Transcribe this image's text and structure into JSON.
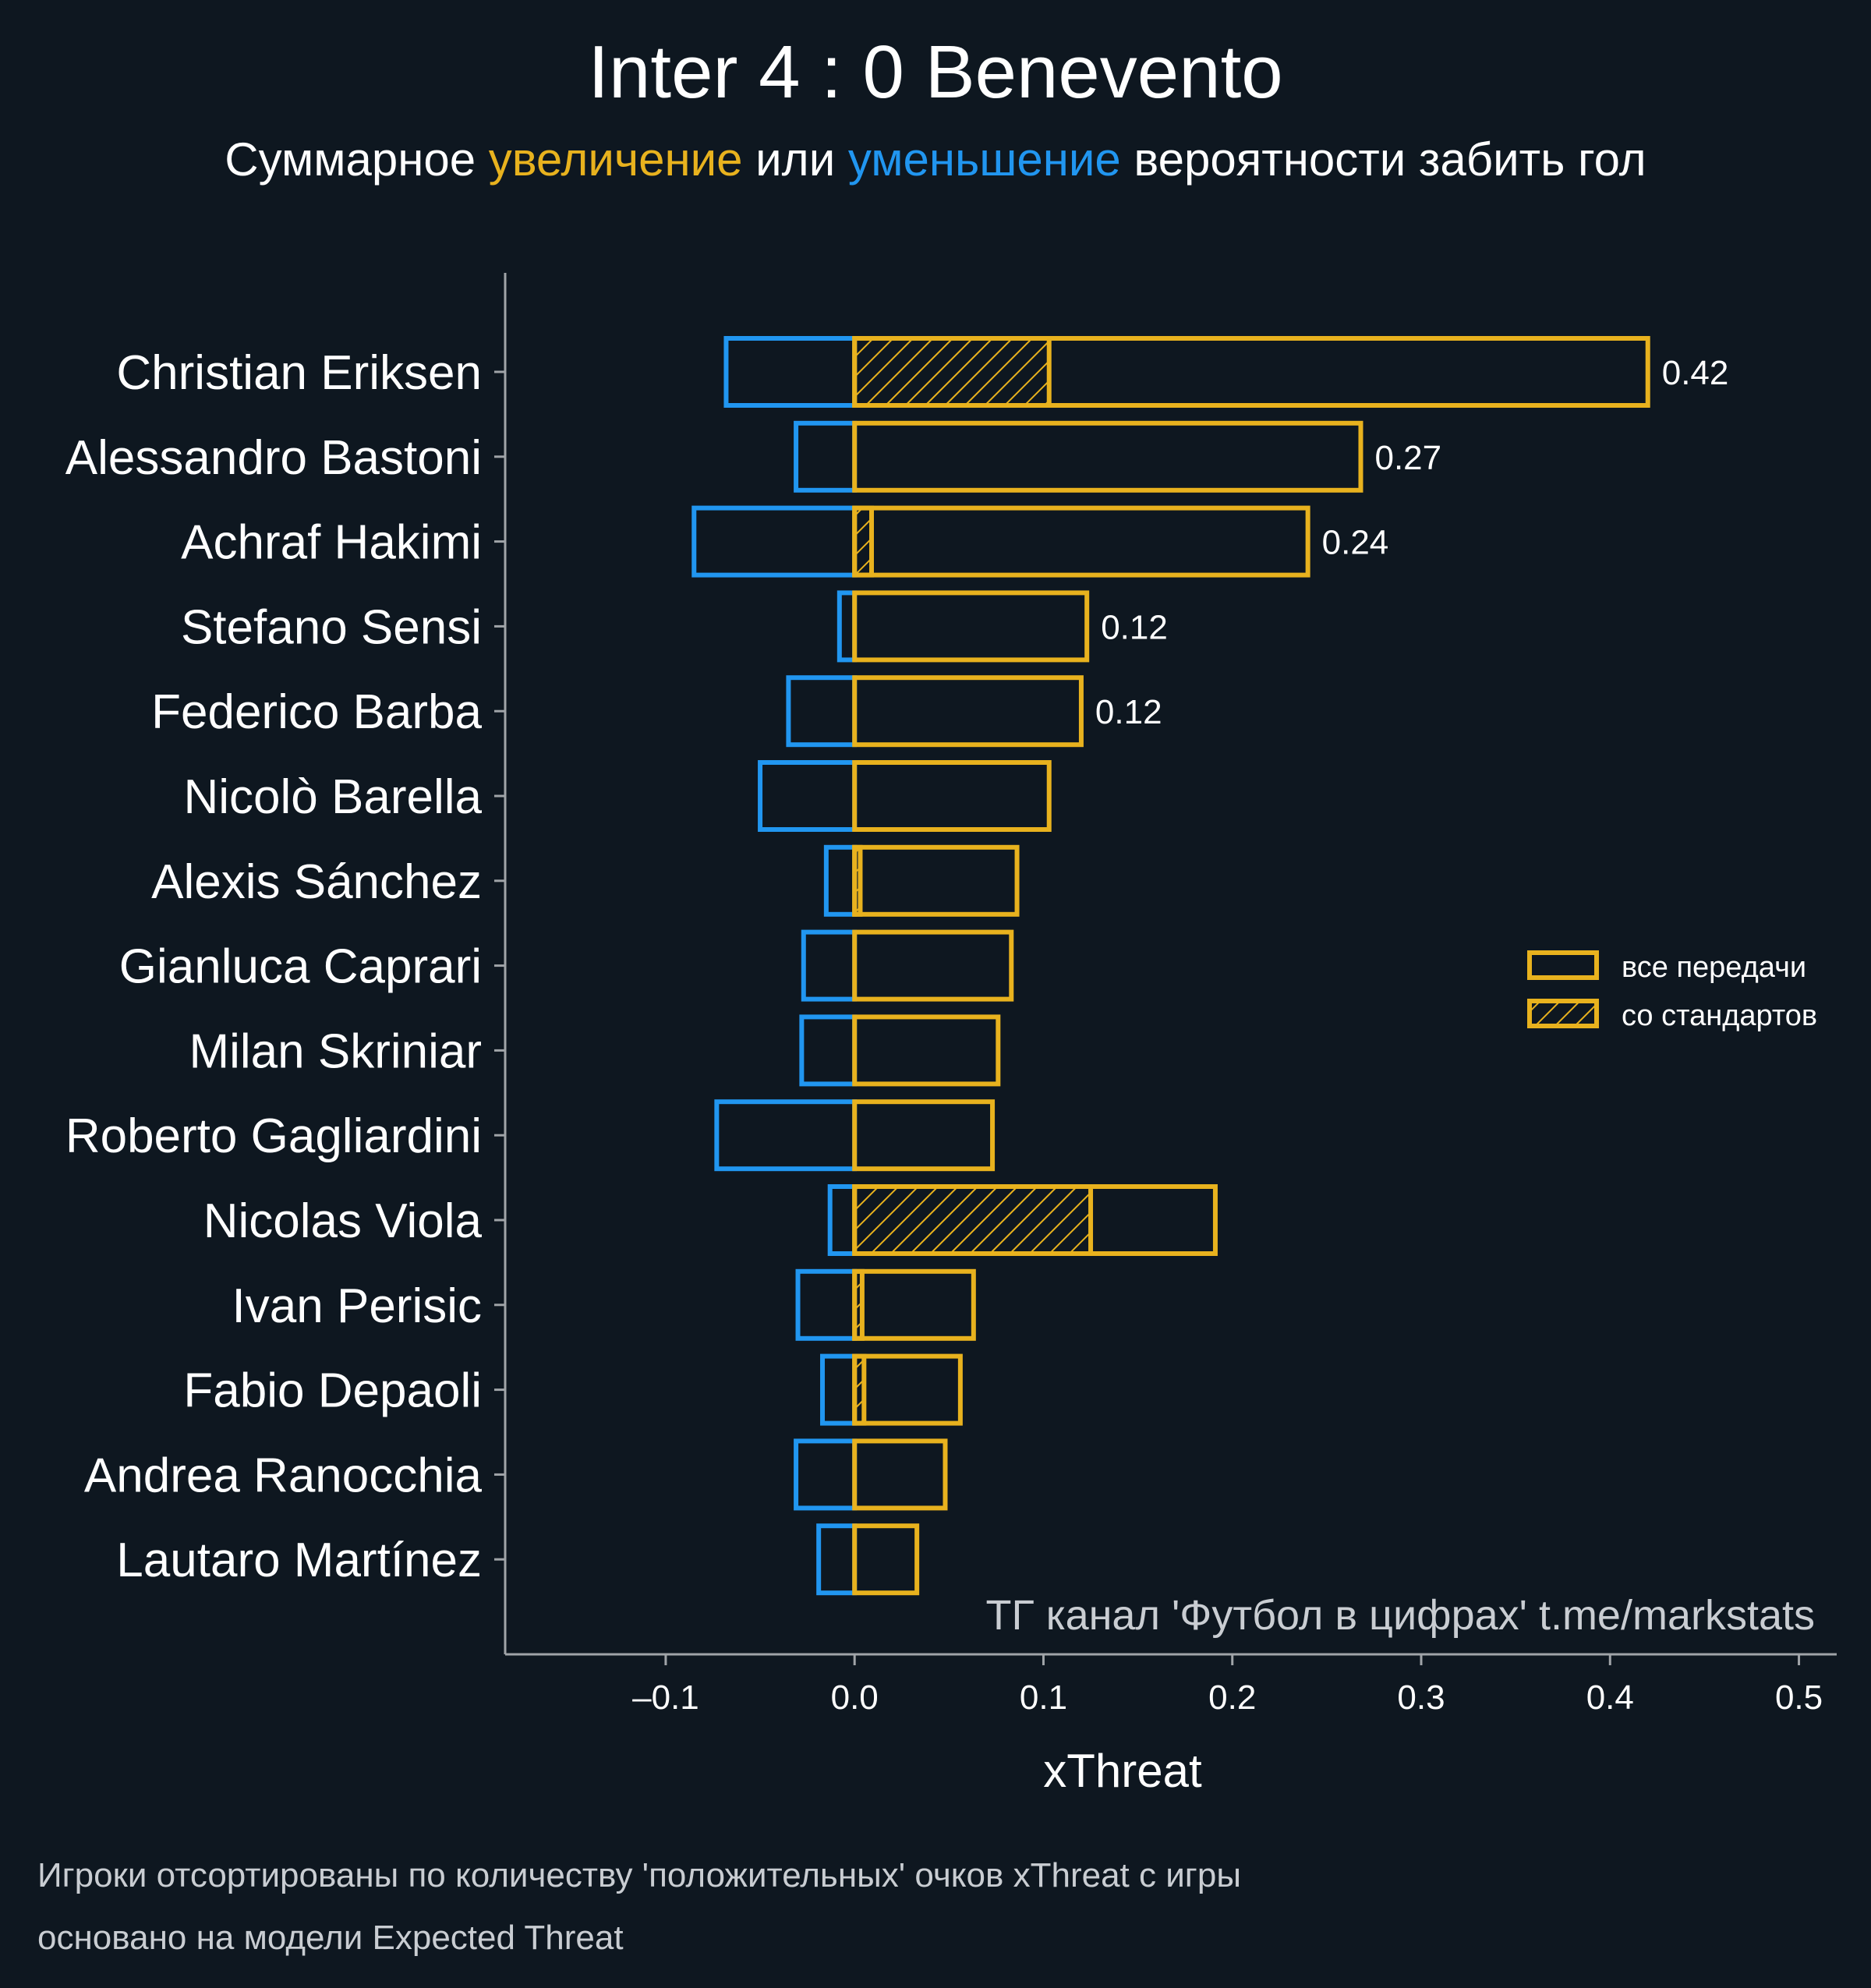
{
  "colors": {
    "background": "#0e1720",
    "positive": "#e8b21e",
    "negative": "#2196f0",
    "axis": "#a0a4a8",
    "text": "#ffffff",
    "muted": "#c9cdd2"
  },
  "title": "Inter 4 : 0 Benevento",
  "subtitle": {
    "part1": "Суммарное ",
    "highlight1": "увеличение",
    "part2": " или ",
    "highlight2": "уменьшение",
    "part3": " вероятности забить гол"
  },
  "watermark": "ТГ канал 'Футбол в цифрах'  t.me/markstats",
  "footnote": {
    "line1": "Игроки отсортированы по количеству 'положительных' очков xThreat с игры",
    "line2": "основано на модели Expected Threat"
  },
  "chart_data": {
    "type": "bar",
    "orientation": "horizontal",
    "xlabel": "xThreat",
    "xlim": [
      -0.185,
      0.52
    ],
    "xticks": [
      -0.1,
      0.0,
      0.1,
      0.2,
      0.3,
      0.4,
      0.5
    ],
    "xtick_labels": [
      "–0.1",
      "0.0",
      "0.1",
      "0.2",
      "0.3",
      "0.4",
      "0.5"
    ],
    "legend": {
      "placement": "right",
      "entries": [
        "все передачи",
        "со стандартов"
      ]
    },
    "categories": [
      "Christian Eriksen",
      "Alessandro Bastoni",
      "Achraf Hakimi",
      "Stefano Sensi",
      "Federico Barba",
      "Nicolò Barella",
      "Alexis Sánchez",
      "Gianluca Caprari",
      "Milan Skriniar",
      "Roberto Gagliardini",
      "Nicolas Viola",
      "Ivan Perisic",
      "Fabio Depaoli",
      "Andrea Ranocchia",
      "Lautaro Martínez"
    ],
    "series": [
      {
        "name": "positive (все передачи)",
        "values": [
          0.42,
          0.268,
          0.24,
          0.123,
          0.12,
          0.103,
          0.086,
          0.083,
          0.076,
          0.073,
          0.191,
          0.063,
          0.056,
          0.048,
          0.033
        ]
      },
      {
        "name": "negative",
        "values": [
          -0.068,
          -0.031,
          -0.085,
          -0.008,
          -0.035,
          -0.05,
          -0.015,
          -0.027,
          -0.028,
          -0.073,
          -0.013,
          -0.03,
          -0.017,
          -0.031,
          -0.019
        ]
      },
      {
        "name": "со стандартов",
        "values": [
          0.103,
          0,
          0.009,
          0,
          0,
          0,
          0.003,
          0,
          0,
          0,
          0.125,
          0.004,
          0.005,
          0,
          0
        ]
      }
    ],
    "value_labels": [
      "0.42",
      "0.27",
      "0.24",
      "0.12",
      "0.12",
      "",
      "",
      "",
      "",
      "",
      "",
      "",
      "",
      "",
      ""
    ]
  }
}
